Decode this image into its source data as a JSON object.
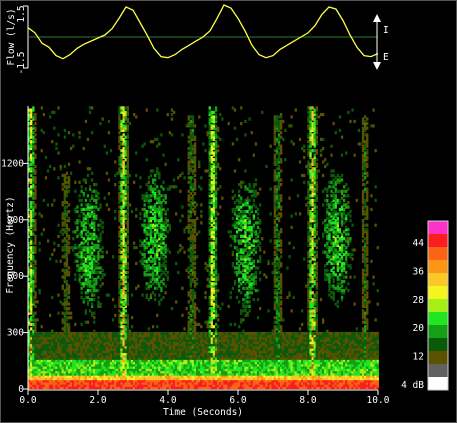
{
  "chart_data": [
    {
      "type": "line",
      "series": [
        {
          "x": [
            0,
            0.2,
            0.4,
            0.6,
            0.8,
            1.0,
            1.2,
            1.4,
            1.6,
            1.8,
            2.0,
            2.2,
            2.4,
            2.6,
            2.8,
            3.0,
            3.2,
            3.4,
            3.6,
            3.8,
            4.0,
            4.2,
            4.4,
            4.6,
            4.8,
            5.0,
            5.2,
            5.4,
            5.6,
            5.8,
            6.0,
            6.2,
            6.4,
            6.6,
            6.8,
            7.0,
            7.2,
            7.4,
            7.6,
            7.8,
            8.0,
            8.2,
            8.4,
            8.6,
            8.8,
            9.0,
            9.2,
            9.4,
            9.6,
            9.8,
            10.0
          ],
          "y": [
            0.45,
            0.2,
            -0.3,
            -0.5,
            -0.9,
            -1.05,
            -0.85,
            -0.55,
            -0.35,
            -0.2,
            -0.05,
            0.1,
            0.4,
            0.9,
            1.45,
            1.3,
            0.7,
            0.1,
            -0.55,
            -0.95,
            -1.0,
            -0.85,
            -0.6,
            -0.4,
            -0.2,
            0.0,
            0.3,
            0.9,
            1.55,
            1.4,
            0.9,
            0.3,
            -0.4,
            -0.85,
            -1.0,
            -0.9,
            -0.6,
            -0.4,
            -0.2,
            0.0,
            0.2,
            0.55,
            1.1,
            1.45,
            1.35,
            0.8,
            0.1,
            -0.5,
            -0.9,
            -0.95,
            -0.8
          ]
        }
      ],
      "ylabel": "Flow (l/s)",
      "yticks": [
        "1.5",
        "-1.5"
      ],
      "ylim": [
        -1.5,
        1.5
      ],
      "xlim": [
        0,
        10
      ],
      "annotations": [
        "I",
        "E"
      ],
      "line_color": "#ffff44",
      "zero_line_color": "#2e7d32"
    },
    {
      "type": "heatmap",
      "title": "",
      "xlabel": "Time (Seconds)",
      "ylabel": "Frequency (Hertz)",
      "xlim": [
        0,
        10
      ],
      "ylim": [
        0,
        1500
      ],
      "xticks": [
        "0.0",
        "2.0",
        "4.0",
        "6.0",
        "8.0",
        "10.0"
      ],
      "yticks": [
        "0",
        "300",
        "600",
        "900",
        "1200"
      ],
      "vertical_bursts": [
        {
          "t": 0.05,
          "top_hz": 1500,
          "peak_db": 30
        },
        {
          "t": 1.05,
          "top_hz": 1150,
          "peak_db": 14
        },
        {
          "t": 2.7,
          "top_hz": 1500,
          "peak_db": 34
        },
        {
          "t": 4.65,
          "top_hz": 1450,
          "peak_db": 16
        },
        {
          "t": 5.25,
          "top_hz": 1500,
          "peak_db": 34
        },
        {
          "t": 7.1,
          "top_hz": 1450,
          "peak_db": 18
        },
        {
          "t": 8.1,
          "top_hz": 1500,
          "peak_db": 34
        },
        {
          "t": 9.6,
          "top_hz": 1450,
          "peak_db": 14
        }
      ],
      "noise_blobs": [
        {
          "t": 1.7,
          "hz": 750
        },
        {
          "t": 3.6,
          "hz": 800
        },
        {
          "t": 6.2,
          "hz": 750
        },
        {
          "t": 8.8,
          "hz": 800
        }
      ]
    }
  ],
  "colorbar": {
    "labels": [
      "44",
      "36",
      "28",
      "20",
      "12",
      "4 dB"
    ],
    "colors": [
      "#ffffff",
      "#606060",
      "#5a5200",
      "#0b5a0b",
      "#14a014",
      "#22e622",
      "#a4f016",
      "#f5f51e",
      "#fac828",
      "#fa9614",
      "#fa6414",
      "#fa1e1e",
      "#ff32c8"
    ]
  }
}
